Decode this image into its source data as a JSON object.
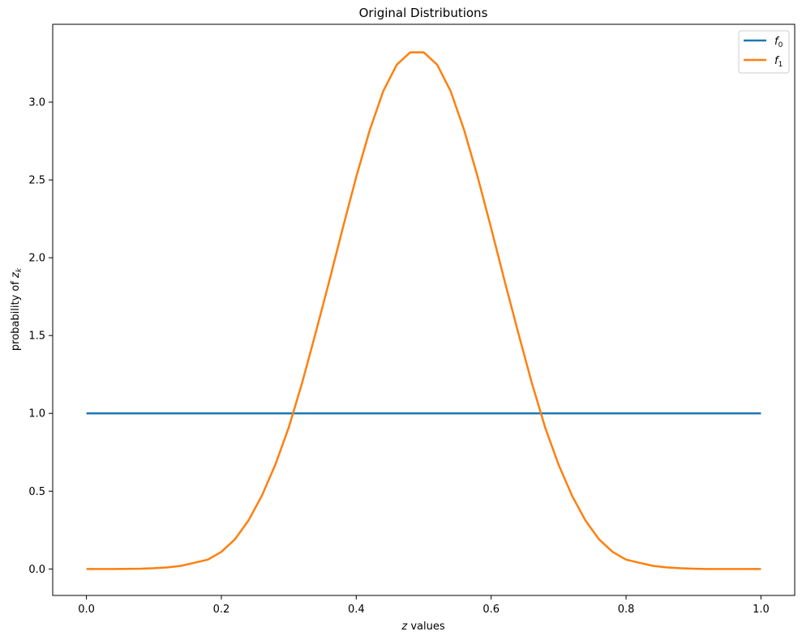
{
  "chart_data": {
    "type": "line",
    "title": "Original Distributions",
    "xlabel": "z values",
    "ylabel": "probability of z_k",
    "xlim": [
      -0.05,
      1.05
    ],
    "ylim": [
      -0.17,
      3.5
    ],
    "xticks": [
      0.0,
      0.2,
      0.4,
      0.6,
      0.8,
      1.0
    ],
    "xtick_labels": [
      "0.0",
      "0.2",
      "0.4",
      "0.6",
      "0.8",
      "1.0"
    ],
    "yticks": [
      0.0,
      0.5,
      1.0,
      1.5,
      2.0,
      2.5,
      3.0
    ],
    "ytick_labels": [
      "0.0",
      "0.5",
      "1.0",
      "1.5",
      "2.0",
      "2.5",
      "3.0"
    ],
    "grid": false,
    "legend_position": "top-right",
    "series": [
      {
        "name": "f_0",
        "color": "#1f77b4",
        "x": [
          0.0,
          1.0
        ],
        "y": [
          1.0,
          1.0
        ]
      },
      {
        "name": "f_1",
        "color": "#ff7f0e",
        "x": [
          0.0,
          0.04,
          0.08,
          0.1,
          0.12,
          0.14,
          0.16,
          0.18,
          0.2,
          0.22,
          0.24,
          0.26,
          0.28,
          0.3,
          0.32,
          0.34,
          0.36,
          0.38,
          0.4,
          0.42,
          0.44,
          0.46,
          0.48,
          0.5,
          0.52,
          0.54,
          0.56,
          0.58,
          0.6,
          0.62,
          0.64,
          0.66,
          0.68,
          0.7,
          0.72,
          0.74,
          0.76,
          0.78,
          0.8,
          0.82,
          0.84,
          0.86,
          0.88,
          0.9,
          0.92,
          0.96,
          1.0
        ],
        "y": [
          0.0,
          0.0,
          0.002,
          0.005,
          0.01,
          0.02,
          0.04,
          0.06,
          0.11,
          0.19,
          0.31,
          0.47,
          0.67,
          0.91,
          1.2,
          1.52,
          1.85,
          2.19,
          2.52,
          2.82,
          3.07,
          3.24,
          3.32,
          3.32,
          3.24,
          3.07,
          2.82,
          2.52,
          2.19,
          1.85,
          1.52,
          1.2,
          0.91,
          0.67,
          0.47,
          0.31,
          0.19,
          0.11,
          0.06,
          0.04,
          0.02,
          0.01,
          0.005,
          0.002,
          0.0,
          0.0,
          0.0
        ]
      }
    ]
  }
}
